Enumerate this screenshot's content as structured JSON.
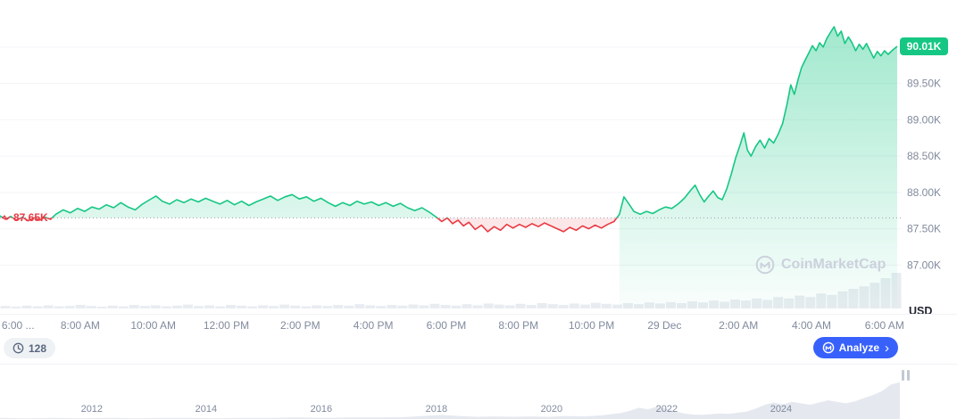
{
  "watermark": {
    "label": "CoinMarketCap"
  },
  "axis_unit": "USD",
  "price_labels": {
    "previous_close": "87.65K",
    "current": "90.01K"
  },
  "toolbar": {
    "candles_count": "128",
    "analyze_label": "Analyze",
    "chevron_right": "›"
  },
  "colors": {
    "green": "#16c784",
    "red": "#ea3943",
    "blue": "#3861fb",
    "text_muted": "#808a9d",
    "grid": "#f2f4f7"
  },
  "chart_data": [
    {
      "type": "line",
      "unit": "USD",
      "previous_close": 87.65,
      "current_value": 90.01,
      "ylim": [
        86.6,
        90.55
      ],
      "yticks": [
        {
          "value": 89.5,
          "label": "89.50K"
        },
        {
          "value": 89.0,
          "label": "89.00K"
        },
        {
          "value": 88.5,
          "label": "88.50K"
        },
        {
          "value": 88.0,
          "label": "88.00K"
        },
        {
          "value": 87.5,
          "label": "87.50K"
        },
        {
          "value": 87.0,
          "label": "87.00K"
        }
      ],
      "grid_values": [
        90.0,
        89.5,
        89.0,
        88.5,
        88.0,
        87.5,
        87.0
      ],
      "xticks": [
        {
          "pos": 0.02,
          "label": "6:00 ..."
        },
        {
          "pos": 0.089,
          "label": "8:00 AM"
        },
        {
          "pos": 0.17,
          "label": "10:00 AM"
        },
        {
          "pos": 0.251,
          "label": "12:00 PM"
        },
        {
          "pos": 0.333,
          "label": "2:00 PM"
        },
        {
          "pos": 0.414,
          "label": "4:00 PM"
        },
        {
          "pos": 0.495,
          "label": "6:00 PM"
        },
        {
          "pos": 0.575,
          "label": "8:00 PM"
        },
        {
          "pos": 0.656,
          "label": "10:00 PM"
        },
        {
          "pos": 0.737,
          "label": "29 Dec"
        },
        {
          "pos": 0.819,
          "label": "2:00 AM"
        },
        {
          "pos": 0.9,
          "label": "4:00 AM"
        },
        {
          "pos": 0.981,
          "label": "6:00 AM"
        }
      ],
      "points": [
        [
          0.0,
          87.68
        ],
        [
          0.006,
          87.63
        ],
        [
          0.012,
          87.67
        ],
        [
          0.018,
          87.62
        ],
        [
          0.025,
          87.66
        ],
        [
          0.031,
          87.61
        ],
        [
          0.038,
          87.65
        ],
        [
          0.044,
          87.62
        ],
        [
          0.05,
          87.66
        ],
        [
          0.056,
          87.63
        ],
        [
          0.062,
          87.7
        ],
        [
          0.07,
          87.76
        ],
        [
          0.078,
          87.72
        ],
        [
          0.086,
          87.78
        ],
        [
          0.094,
          87.74
        ],
        [
          0.102,
          87.8
        ],
        [
          0.11,
          87.77
        ],
        [
          0.118,
          87.83
        ],
        [
          0.126,
          87.79
        ],
        [
          0.134,
          87.86
        ],
        [
          0.142,
          87.8
        ],
        [
          0.15,
          87.76
        ],
        [
          0.158,
          87.84
        ],
        [
          0.166,
          87.9
        ],
        [
          0.173,
          87.95
        ],
        [
          0.18,
          87.88
        ],
        [
          0.188,
          87.84
        ],
        [
          0.196,
          87.9
        ],
        [
          0.204,
          87.86
        ],
        [
          0.212,
          87.91
        ],
        [
          0.22,
          87.87
        ],
        [
          0.228,
          87.92
        ],
        [
          0.236,
          87.88
        ],
        [
          0.244,
          87.84
        ],
        [
          0.252,
          87.89
        ],
        [
          0.26,
          87.83
        ],
        [
          0.268,
          87.88
        ],
        [
          0.276,
          87.82
        ],
        [
          0.284,
          87.87
        ],
        [
          0.292,
          87.91
        ],
        [
          0.3,
          87.95
        ],
        [
          0.308,
          87.89
        ],
        [
          0.316,
          87.94
        ],
        [
          0.324,
          87.97
        ],
        [
          0.332,
          87.91
        ],
        [
          0.34,
          87.94
        ],
        [
          0.348,
          87.88
        ],
        [
          0.356,
          87.92
        ],
        [
          0.364,
          87.86
        ],
        [
          0.372,
          87.81
        ],
        [
          0.38,
          87.86
        ],
        [
          0.388,
          87.82
        ],
        [
          0.396,
          87.88
        ],
        [
          0.404,
          87.84
        ],
        [
          0.412,
          87.87
        ],
        [
          0.42,
          87.82
        ],
        [
          0.428,
          87.86
        ],
        [
          0.436,
          87.81
        ],
        [
          0.444,
          87.85
        ],
        [
          0.452,
          87.79
        ],
        [
          0.46,
          87.75
        ],
        [
          0.468,
          87.79
        ],
        [
          0.476,
          87.73
        ],
        [
          0.484,
          87.66
        ],
        [
          0.49,
          87.6
        ],
        [
          0.496,
          87.65
        ],
        [
          0.502,
          87.57
        ],
        [
          0.508,
          87.62
        ],
        [
          0.514,
          87.54
        ],
        [
          0.52,
          87.59
        ],
        [
          0.527,
          87.49
        ],
        [
          0.534,
          87.55
        ],
        [
          0.541,
          87.46
        ],
        [
          0.548,
          87.53
        ],
        [
          0.555,
          87.48
        ],
        [
          0.562,
          87.56
        ],
        [
          0.569,
          87.51
        ],
        [
          0.576,
          87.56
        ],
        [
          0.583,
          87.52
        ],
        [
          0.59,
          87.57
        ],
        [
          0.597,
          87.53
        ],
        [
          0.604,
          87.58
        ],
        [
          0.611,
          87.54
        ],
        [
          0.618,
          87.5
        ],
        [
          0.625,
          87.46
        ],
        [
          0.632,
          87.52
        ],
        [
          0.639,
          87.48
        ],
        [
          0.646,
          87.54
        ],
        [
          0.653,
          87.5
        ],
        [
          0.66,
          87.55
        ],
        [
          0.667,
          87.51
        ],
        [
          0.674,
          87.56
        ],
        [
          0.681,
          87.6
        ],
        [
          0.687,
          87.7
        ],
        [
          0.692,
          87.94
        ],
        [
          0.697,
          87.85
        ],
        [
          0.703,
          87.74
        ],
        [
          0.71,
          87.7
        ],
        [
          0.717,
          87.74
        ],
        [
          0.724,
          87.71
        ],
        [
          0.731,
          87.76
        ],
        [
          0.738,
          87.8
        ],
        [
          0.745,
          87.78
        ],
        [
          0.752,
          87.84
        ],
        [
          0.759,
          87.92
        ],
        [
          0.766,
          88.03
        ],
        [
          0.771,
          88.1
        ],
        [
          0.776,
          87.97
        ],
        [
          0.781,
          87.87
        ],
        [
          0.786,
          87.95
        ],
        [
          0.791,
          88.02
        ],
        [
          0.796,
          87.93
        ],
        [
          0.801,
          87.9
        ],
        [
          0.806,
          88.05
        ],
        [
          0.811,
          88.25
        ],
        [
          0.816,
          88.48
        ],
        [
          0.821,
          88.66
        ],
        [
          0.825,
          88.82
        ],
        [
          0.829,
          88.58
        ],
        [
          0.833,
          88.5
        ],
        [
          0.838,
          88.63
        ],
        [
          0.843,
          88.72
        ],
        [
          0.848,
          88.61
        ],
        [
          0.853,
          88.74
        ],
        [
          0.858,
          88.68
        ],
        [
          0.863,
          88.8
        ],
        [
          0.868,
          88.95
        ],
        [
          0.873,
          89.22
        ],
        [
          0.877,
          89.48
        ],
        [
          0.881,
          89.35
        ],
        [
          0.885,
          89.55
        ],
        [
          0.889,
          89.72
        ],
        [
          0.893,
          89.82
        ],
        [
          0.897,
          89.92
        ],
        [
          0.901,
          90.02
        ],
        [
          0.905,
          89.95
        ],
        [
          0.909,
          90.06
        ],
        [
          0.913,
          90.0
        ],
        [
          0.917,
          90.12
        ],
        [
          0.921,
          90.2
        ],
        [
          0.925,
          90.28
        ],
        [
          0.929,
          90.15
        ],
        [
          0.933,
          90.22
        ],
        [
          0.937,
          90.05
        ],
        [
          0.941,
          90.14
        ],
        [
          0.945,
          90.06
        ],
        [
          0.949,
          89.95
        ],
        [
          0.953,
          90.04
        ],
        [
          0.957,
          89.97
        ],
        [
          0.961,
          90.05
        ],
        [
          0.965,
          89.95
        ],
        [
          0.969,
          89.85
        ],
        [
          0.973,
          89.94
        ],
        [
          0.977,
          89.88
        ],
        [
          0.981,
          89.95
        ],
        [
          0.985,
          89.9
        ],
        [
          0.99,
          89.96
        ],
        [
          0.995,
          90.01
        ]
      ],
      "volume": [
        0.07,
        0.05,
        0.08,
        0.06,
        0.09,
        0.06,
        0.07,
        0.1,
        0.07,
        0.05,
        0.08,
        0.06,
        0.1,
        0.07,
        0.09,
        0.06,
        0.08,
        0.11,
        0.07,
        0.09,
        0.06,
        0.1,
        0.08,
        0.06,
        0.09,
        0.07,
        0.11,
        0.08,
        0.06,
        0.09,
        0.07,
        0.1,
        0.08,
        0.12,
        0.09,
        0.07,
        0.1,
        0.08,
        0.11,
        0.09,
        0.13,
        0.1,
        0.08,
        0.12,
        0.09,
        0.14,
        0.11,
        0.09,
        0.13,
        0.1,
        0.15,
        0.12,
        0.1,
        0.14,
        0.11,
        0.16,
        0.13,
        0.11,
        0.15,
        0.12,
        0.17,
        0.14,
        0.18,
        0.15,
        0.2,
        0.17,
        0.22,
        0.19,
        0.25,
        0.22,
        0.28,
        0.24,
        0.32,
        0.28,
        0.36,
        0.32,
        0.42,
        0.38,
        0.48,
        0.55,
        0.62,
        0.72,
        0.85,
        1.0
      ]
    },
    {
      "type": "area",
      "name": "navigator",
      "xticks": [
        {
          "pos": 0.102,
          "label": "2012"
        },
        {
          "pos": 0.229,
          "label": "2014"
        },
        {
          "pos": 0.357,
          "label": "2016"
        },
        {
          "pos": 0.485,
          "label": "2018"
        },
        {
          "pos": 0.613,
          "label": "2020"
        },
        {
          "pos": 0.741,
          "label": "2022"
        },
        {
          "pos": 0.868,
          "label": "2024"
        }
      ],
      "values": [
        [
          0.0,
          0.03
        ],
        [
          0.03,
          0.02
        ],
        [
          0.06,
          0.03
        ],
        [
          0.09,
          0.02
        ],
        [
          0.12,
          0.03
        ],
        [
          0.15,
          0.02
        ],
        [
          0.18,
          0.03
        ],
        [
          0.21,
          0.03
        ],
        [
          0.24,
          0.02
        ],
        [
          0.27,
          0.03
        ],
        [
          0.3,
          0.03
        ],
        [
          0.33,
          0.04
        ],
        [
          0.36,
          0.03
        ],
        [
          0.39,
          0.04
        ],
        [
          0.42,
          0.04
        ],
        [
          0.45,
          0.05
        ],
        [
          0.47,
          0.08
        ],
        [
          0.49,
          0.11
        ],
        [
          0.51,
          0.08
        ],
        [
          0.53,
          0.06
        ],
        [
          0.55,
          0.07
        ],
        [
          0.57,
          0.06
        ],
        [
          0.59,
          0.07
        ],
        [
          0.61,
          0.06
        ],
        [
          0.63,
          0.08
        ],
        [
          0.65,
          0.07
        ],
        [
          0.67,
          0.1
        ],
        [
          0.69,
          0.16
        ],
        [
          0.7,
          0.22
        ],
        [
          0.71,
          0.3
        ],
        [
          0.72,
          0.26
        ],
        [
          0.73,
          0.33
        ],
        [
          0.74,
          0.28
        ],
        [
          0.75,
          0.2
        ],
        [
          0.76,
          0.15
        ],
        [
          0.77,
          0.12
        ],
        [
          0.78,
          0.11
        ],
        [
          0.79,
          0.13
        ],
        [
          0.8,
          0.15
        ],
        [
          0.81,
          0.14
        ],
        [
          0.82,
          0.17
        ],
        [
          0.83,
          0.2
        ],
        [
          0.84,
          0.28
        ],
        [
          0.85,
          0.38
        ],
        [
          0.86,
          0.44
        ],
        [
          0.87,
          0.39
        ],
        [
          0.88,
          0.46
        ],
        [
          0.89,
          0.42
        ],
        [
          0.9,
          0.38
        ],
        [
          0.91,
          0.44
        ],
        [
          0.92,
          0.5
        ],
        [
          0.93,
          0.46
        ],
        [
          0.94,
          0.42
        ],
        [
          0.95,
          0.47
        ],
        [
          0.96,
          0.56
        ],
        [
          0.97,
          0.64
        ],
        [
          0.98,
          0.74
        ],
        [
          0.99,
          0.92
        ],
        [
          1.0,
          0.98
        ]
      ]
    }
  ]
}
